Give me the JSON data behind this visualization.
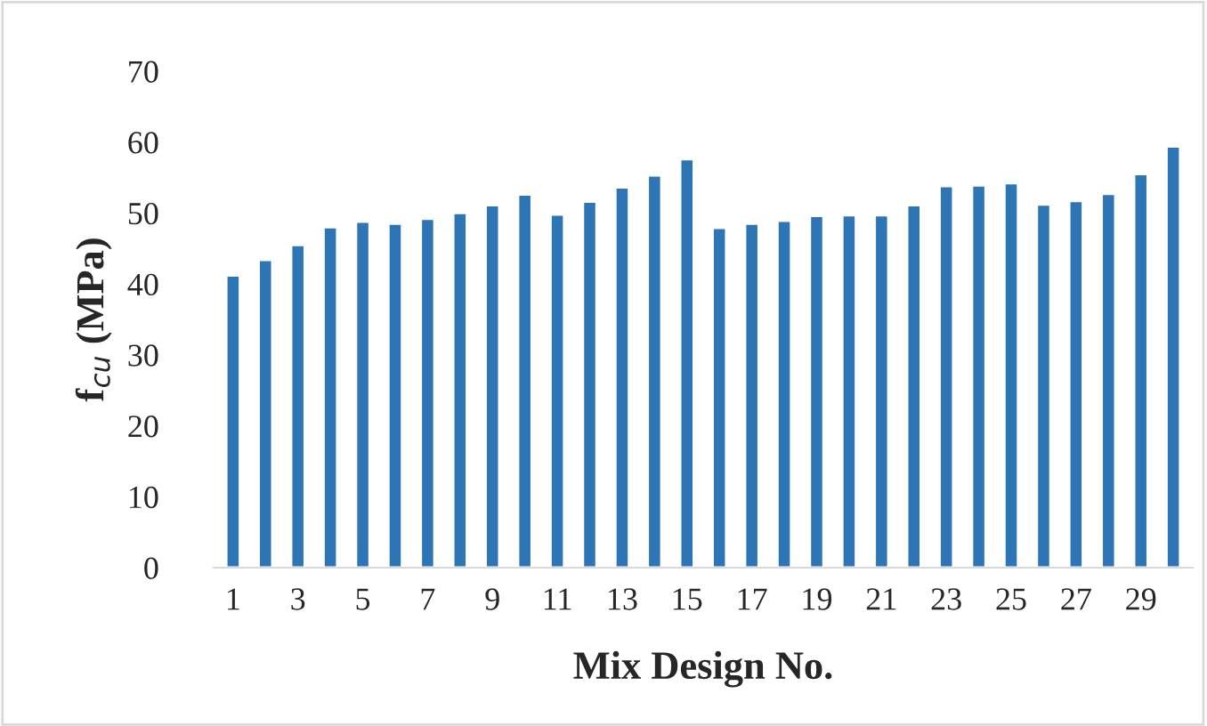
{
  "chart_data": {
    "type": "bar",
    "xlabel": "Mix Design No.",
    "ylabel": "f$_{cu}$ (MPa)",
    "categories": [
      "1",
      null,
      "3",
      null,
      "5",
      null,
      "7",
      null,
      "9",
      null,
      "11",
      null,
      "13",
      null,
      "15",
      null,
      "17",
      null,
      "19",
      null,
      "21",
      null,
      "23",
      null,
      "25",
      null,
      "27",
      null,
      "29",
      null
    ],
    "values": [
      41.2,
      43.4,
      45.5,
      48.0,
      48.8,
      48.5,
      49.2,
      50.0,
      51.1,
      52.6,
      49.8,
      51.6,
      53.6,
      55.3,
      57.6,
      47.9,
      48.5,
      48.9,
      49.6,
      49.7,
      49.7,
      51.1,
      53.8,
      53.9,
      54.2,
      51.2,
      51.7,
      52.7,
      55.5,
      59.4
    ],
    "color": "#2e75b6",
    "ylim": [
      0,
      70
    ],
    "yticks": [
      0,
      10,
      20,
      30,
      40,
      50,
      60,
      70
    ],
    "grid": false,
    "legend": false
  }
}
